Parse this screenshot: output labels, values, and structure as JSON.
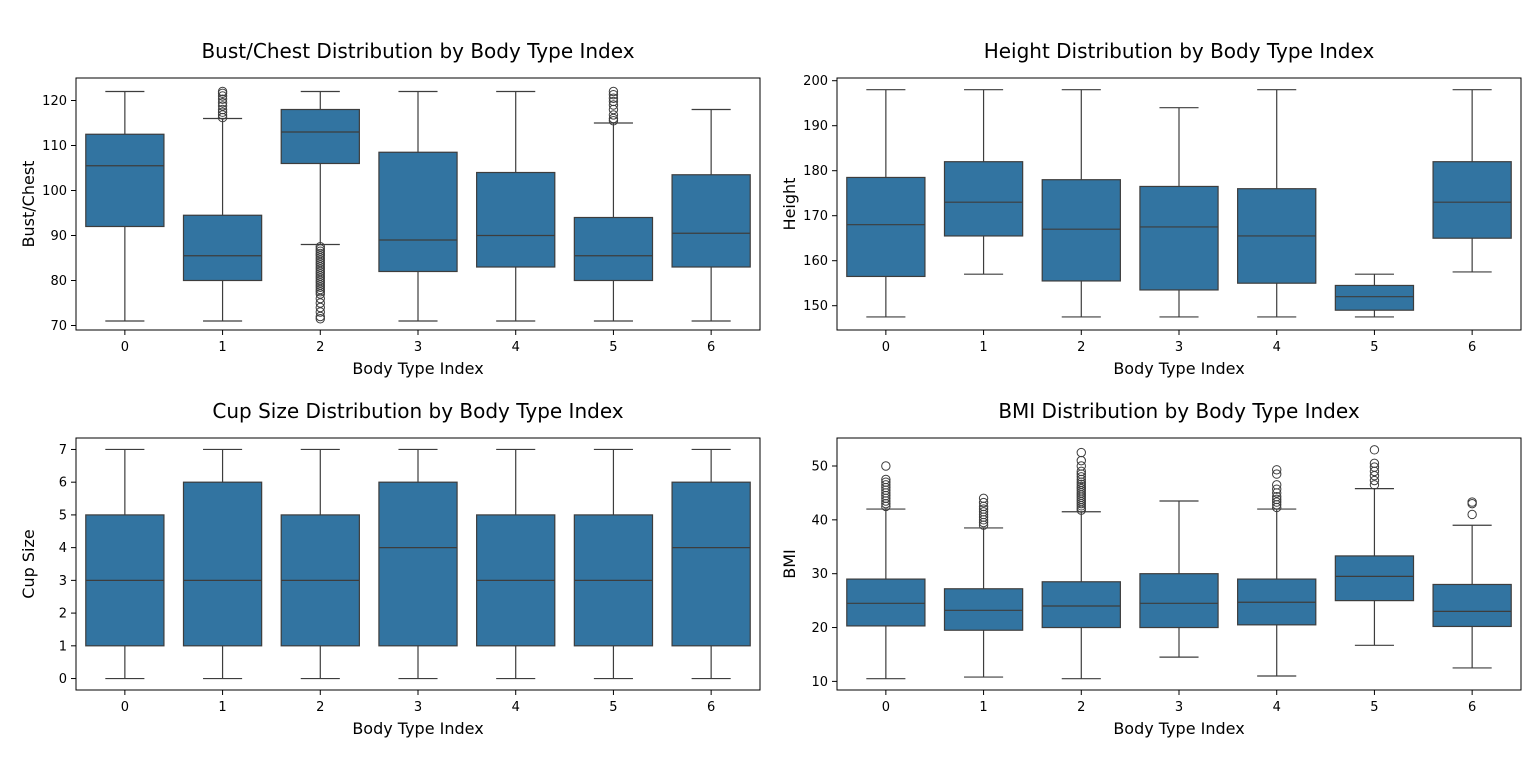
{
  "figure": {
    "box_color": "#3274a1",
    "line_color": "#3d3d3d"
  },
  "chart_data": [
    {
      "type": "box",
      "title": "Bust/Chest Distribution by Body Type Index",
      "xlabel": "Body Type Index",
      "ylabel": "Bust/Chest",
      "categories": [
        "0",
        "1",
        "2",
        "3",
        "4",
        "5",
        "6"
      ],
      "ylim": [
        69,
        125
      ],
      "yticks": [
        70,
        80,
        90,
        100,
        110,
        120
      ],
      "boxes": [
        {
          "whisker_low": 71,
          "q1": 92,
          "median": 105.5,
          "q3": 112.5,
          "whisker_high": 122,
          "outliers": []
        },
        {
          "whisker_low": 71,
          "q1": 80,
          "median": 85.5,
          "q3": 94.5,
          "whisker_high": 116,
          "outliers": [
            116.2,
            116.8,
            117.4,
            118,
            118.8,
            119.5,
            120.3,
            121,
            121.6,
            122
          ]
        },
        {
          "whisker_low": 88,
          "q1": 106,
          "median": 113,
          "q3": 118,
          "whisker_high": 122,
          "outliers": [
            87.5,
            87,
            86.5,
            86,
            85.5,
            85,
            84.5,
            84,
            83.5,
            83,
            82.5,
            82,
            81.5,
            81,
            80.5,
            80,
            79.5,
            79,
            78.5,
            78,
            77.5,
            77,
            76,
            75,
            74,
            73,
            72,
            71.5
          ]
        },
        {
          "whisker_low": 71,
          "q1": 82,
          "median": 89,
          "q3": 108.5,
          "whisker_high": 122,
          "outliers": []
        },
        {
          "whisker_low": 71,
          "q1": 83,
          "median": 90,
          "q3": 104,
          "whisker_high": 122,
          "outliers": []
        },
        {
          "whisker_low": 71,
          "q1": 80,
          "median": 85.5,
          "q3": 94,
          "whisker_high": 115,
          "outliers": [
            115.5,
            116,
            116.8,
            118,
            119,
            119.8,
            120.5,
            121.3,
            122
          ]
        },
        {
          "whisker_low": 71,
          "q1": 83,
          "median": 90.5,
          "q3": 103.5,
          "whisker_high": 118,
          "outliers": []
        }
      ]
    },
    {
      "type": "box",
      "title": "Height Distribution by Body Type Index",
      "xlabel": "Body Type Index",
      "ylabel": "Height",
      "categories": [
        "0",
        "1",
        "2",
        "3",
        "4",
        "5",
        "6"
      ],
      "ylim": [
        144.6,
        200.6
      ],
      "yticks": [
        150,
        160,
        170,
        180,
        190,
        200
      ],
      "boxes": [
        {
          "whisker_low": 147.5,
          "q1": 156.5,
          "median": 168,
          "q3": 178.5,
          "whisker_high": 198,
          "outliers": []
        },
        {
          "whisker_low": 157,
          "q1": 165.5,
          "median": 173,
          "q3": 182,
          "whisker_high": 198,
          "outliers": []
        },
        {
          "whisker_low": 147.5,
          "q1": 155.5,
          "median": 167,
          "q3": 178,
          "whisker_high": 198,
          "outliers": []
        },
        {
          "whisker_low": 147.5,
          "q1": 153.5,
          "median": 167.5,
          "q3": 176.5,
          "whisker_high": 194,
          "outliers": []
        },
        {
          "whisker_low": 147.5,
          "q1": 155,
          "median": 165.5,
          "q3": 176,
          "whisker_high": 198,
          "outliers": []
        },
        {
          "whisker_low": 147.5,
          "q1": 149,
          "median": 152,
          "q3": 154.5,
          "whisker_high": 157,
          "outliers": []
        },
        {
          "whisker_low": 157.5,
          "q1": 165,
          "median": 173,
          "q3": 182,
          "whisker_high": 198,
          "outliers": []
        }
      ]
    },
    {
      "type": "box",
      "title": "Cup Size Distribution by Body Type Index",
      "xlabel": "Body Type Index",
      "ylabel": "Cup Size",
      "categories": [
        "0",
        "1",
        "2",
        "3",
        "4",
        "5",
        "6"
      ],
      "ylim": [
        -0.35,
        7.35
      ],
      "yticks": [
        0,
        1,
        2,
        3,
        4,
        5,
        6,
        7
      ],
      "boxes": [
        {
          "whisker_low": 0,
          "q1": 1,
          "median": 3,
          "q3": 5,
          "whisker_high": 7,
          "outliers": []
        },
        {
          "whisker_low": 0,
          "q1": 1,
          "median": 3,
          "q3": 6,
          "whisker_high": 7,
          "outliers": []
        },
        {
          "whisker_low": 0,
          "q1": 1,
          "median": 3,
          "q3": 5,
          "whisker_high": 7,
          "outliers": []
        },
        {
          "whisker_low": 0,
          "q1": 1,
          "median": 4,
          "q3": 6,
          "whisker_high": 7,
          "outliers": []
        },
        {
          "whisker_low": 0,
          "q1": 1,
          "median": 3,
          "q3": 5,
          "whisker_high": 7,
          "outliers": []
        },
        {
          "whisker_low": 0,
          "q1": 1,
          "median": 3,
          "q3": 5,
          "whisker_high": 7,
          "outliers": []
        },
        {
          "whisker_low": 0,
          "q1": 1,
          "median": 4,
          "q3": 6,
          "whisker_high": 7,
          "outliers": []
        }
      ]
    },
    {
      "type": "box",
      "title": "BMI Distribution by Body Type Index",
      "xlabel": "Body Type Index",
      "ylabel": "BMI",
      "categories": [
        "0",
        "1",
        "2",
        "3",
        "4",
        "5",
        "6"
      ],
      "ylim": [
        8.4,
        55.2
      ],
      "yticks": [
        10,
        20,
        30,
        40,
        50
      ],
      "boxes": [
        {
          "whisker_low": 10.5,
          "q1": 20.3,
          "median": 24.5,
          "q3": 29,
          "whisker_high": 42,
          "outliers": [
            42.5,
            43,
            43.5,
            44,
            44.5,
            45,
            45.5,
            46,
            46.5,
            47,
            47.5,
            50
          ]
        },
        {
          "whisker_low": 10.8,
          "q1": 19.5,
          "median": 23.2,
          "q3": 27.2,
          "whisker_high": 38.5,
          "outliers": [
            39,
            39.5,
            40,
            40.5,
            41,
            41.5,
            42,
            42.5,
            43.2,
            44
          ]
        },
        {
          "whisker_low": 10.5,
          "q1": 20,
          "median": 24,
          "q3": 28.5,
          "whisker_high": 41.5,
          "outliers": [
            41.8,
            42.2,
            42.6,
            43,
            43.4,
            43.8,
            44.2,
            44.6,
            45,
            45.4,
            45.8,
            46.2,
            46.6,
            47,
            47.5,
            48,
            48.5,
            49,
            50,
            51,
            52.5
          ]
        },
        {
          "whisker_low": 14.5,
          "q1": 20,
          "median": 24.5,
          "q3": 30,
          "whisker_high": 43.5,
          "outliers": []
        },
        {
          "whisker_low": 11,
          "q1": 20.5,
          "median": 24.7,
          "q3": 29,
          "whisker_high": 42,
          "outliers": [
            42.3,
            42.8,
            43.3,
            43.8,
            44.3,
            45,
            45.7,
            46.5,
            48.5,
            49.3
          ]
        },
        {
          "whisker_low": 16.7,
          "q1": 25,
          "median": 29.5,
          "q3": 33.3,
          "whisker_high": 45.8,
          "outliers": [
            46.5,
            47.3,
            48.2,
            49,
            49.8,
            50.5,
            53
          ]
        },
        {
          "whisker_low": 12.5,
          "q1": 20.2,
          "median": 23,
          "q3": 28,
          "whisker_high": 39,
          "outliers": [
            41,
            43,
            43.3
          ]
        }
      ]
    }
  ]
}
